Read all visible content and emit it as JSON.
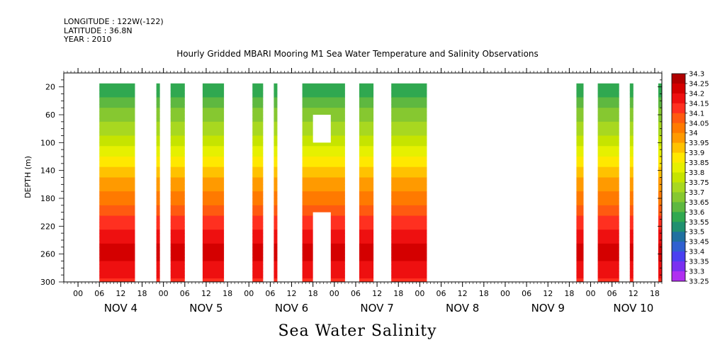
{
  "header": {
    "longitude": "LONGITUDE : 122W(-122)",
    "latitude": "LATITUDE : 36.8N",
    "year": "YEAR : 2010"
  },
  "chart_data": {
    "type": "heatmap",
    "title": "Hourly Gridded MBARI Mooring M1 Sea Water Temperature and Salinity Observations",
    "variable": "Sea Water Salinity",
    "ylabel": "DEPTH (m)",
    "ylim": [
      300,
      0
    ],
    "yticks": [
      20,
      60,
      100,
      140,
      180,
      220,
      260,
      300
    ],
    "x_hour_ticks": [
      "00",
      "06",
      "12",
      "18",
      "00",
      "06",
      "12",
      "18",
      "00",
      "06",
      "12",
      "18",
      "00",
      "06",
      "12",
      "18",
      "00",
      "06",
      "12",
      "18",
      "00",
      "06",
      "12",
      "18",
      "00",
      "06",
      "12",
      "18"
    ],
    "x_day_labels": [
      "NOV 4",
      "NOV 5",
      "NOV 6",
      "NOV 7",
      "NOV 8",
      "NOV 9",
      "NOV 10"
    ],
    "x_range_hours": [
      -4,
      164
    ],
    "colorbar": {
      "levels": [
        "34.3",
        "34.25",
        "34.2",
        "34.15",
        "34.1",
        "34.05",
        "34",
        "33.95",
        "33.9",
        "33.85",
        "33.8",
        "33.75",
        "33.7",
        "33.65",
        "33.6",
        "33.55",
        "33.5",
        "33.45",
        "33.4",
        "33.35",
        "33.3",
        "33.25"
      ],
      "colors": [
        "#b00000",
        "#d40000",
        "#ee1010",
        "#ff3020",
        "#ff5a10",
        "#ff7a00",
        "#ff9a00",
        "#ffc200",
        "#ffe800",
        "#e6f000",
        "#c6e400",
        "#a8d820",
        "#86c830",
        "#5eb840",
        "#30a850",
        "#209070",
        "#2070a0",
        "#3060d0",
        "#4a40f0",
        "#7a30f0",
        "#b030f0"
      ]
    },
    "data_segments_hours": [
      [
        6,
        16
      ],
      [
        22,
        23
      ],
      [
        26,
        30
      ],
      [
        35,
        41
      ],
      [
        49,
        52
      ],
      [
        55,
        56
      ],
      [
        63,
        75
      ],
      [
        79,
        83
      ],
      [
        88,
        98
      ],
      [
        140,
        142
      ],
      [
        146,
        152
      ],
      [
        155,
        156
      ],
      [
        163,
        166
      ]
    ],
    "data_gaps": [
      {
        "hours": [
          66,
          71
        ],
        "depth": [
          60,
          100
        ]
      },
      {
        "hours": [
          66,
          71
        ],
        "depth": [
          200,
          300
        ]
      }
    ],
    "profile_mean": [
      {
        "depth": 20,
        "value": 33.55
      },
      {
        "depth": 40,
        "value": 33.62
      },
      {
        "depth": 60,
        "value": 33.67
      },
      {
        "depth": 80,
        "value": 33.72
      },
      {
        "depth": 100,
        "value": 33.78
      },
      {
        "depth": 120,
        "value": 33.84
      },
      {
        "depth": 140,
        "value": 33.92
      },
      {
        "depth": 160,
        "value": 33.98
      },
      {
        "depth": 180,
        "value": 34.02
      },
      {
        "depth": 200,
        "value": 34.08
      },
      {
        "depth": 220,
        "value": 34.14
      },
      {
        "depth": 240,
        "value": 34.19
      },
      {
        "depth": 260,
        "value": 34.22
      },
      {
        "depth": 280,
        "value": 34.17
      },
      {
        "depth": 300,
        "value": 34.14
      }
    ]
  }
}
